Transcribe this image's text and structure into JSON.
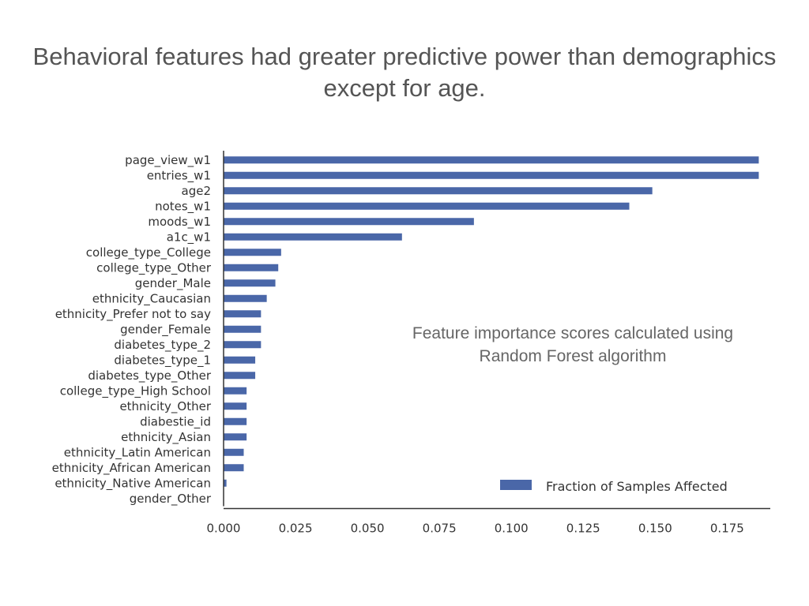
{
  "slide": {
    "title_line1": "Behavioral features had greater predictive power than demographics",
    "title_line2": "except for age.",
    "annotation_line1": "Feature importance scores calculated using",
    "annotation_line2": "Random Forest algorithm"
  },
  "chart_data": {
    "type": "bar",
    "orientation": "horizontal",
    "categories": [
      "page_view_w1",
      "entries_w1",
      "age2",
      "notes_w1",
      "moods_w1",
      "a1c_w1",
      "college_type_College",
      "college_type_Other",
      "gender_Male",
      "ethnicity_Caucasian",
      "ethnicity_Prefer not to say",
      "gender_Female",
      "diabetes_type_2",
      "diabetes_type_1",
      "diabetes_type_Other",
      "college_type_High School",
      "ethnicity_Other",
      "diabestie_id",
      "ethnicity_Asian",
      "ethnicity_Latin American",
      "ethnicity_African American",
      "ethnicity_Native American",
      "gender_Other"
    ],
    "series": [
      {
        "name": "Fraction of Samples Affected",
        "color": "#4a67a8",
        "values": [
          0.186,
          0.186,
          0.149,
          0.141,
          0.087,
          0.062,
          0.02,
          0.019,
          0.018,
          0.015,
          0.013,
          0.013,
          0.013,
          0.011,
          0.011,
          0.008,
          0.008,
          0.008,
          0.008,
          0.007,
          0.007,
          0.001,
          0.0
        ]
      }
    ],
    "xticks": [
      "0.000",
      "0.025",
      "0.050",
      "0.075",
      "0.100",
      "0.125",
      "0.150",
      "0.175"
    ],
    "xlim": [
      0.0,
      0.19
    ],
    "xlabel": "",
    "ylabel": "",
    "grid": false,
    "legend_position": "bottom-right"
  }
}
